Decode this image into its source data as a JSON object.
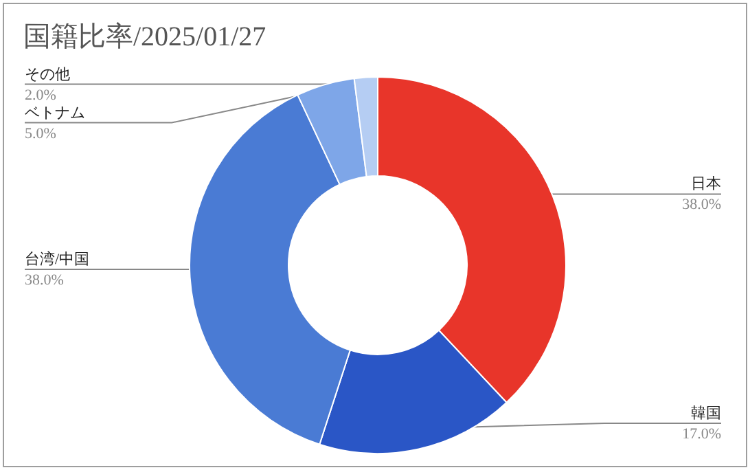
{
  "chart_data": {
    "type": "donut",
    "title": "国籍比率/2025/01/27",
    "categories": [
      "日本",
      "韓国",
      "台湾/中国",
      "ベトナム",
      "その他"
    ],
    "values": [
      38,
      17,
      38,
      5,
      2
    ],
    "value_labels": [
      "38.0%",
      "17.0%",
      "38.0%",
      "5.0%",
      "2.0%"
    ],
    "colors": [
      "#e8352a",
      "#2a56c6",
      "#4a7bd4",
      "#7ea6e8",
      "#b5cdf3"
    ]
  }
}
